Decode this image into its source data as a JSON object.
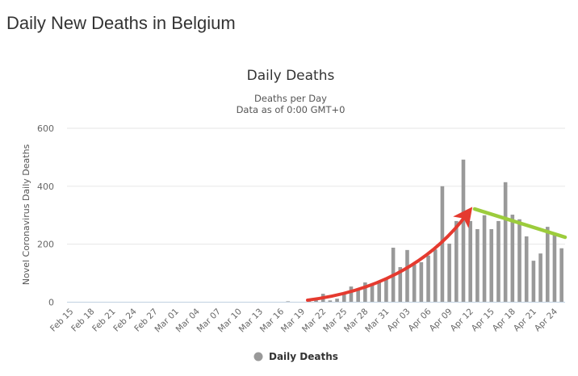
{
  "page": {
    "title": "Daily New Deaths in Belgium"
  },
  "chart_data": {
    "type": "bar",
    "title": "Daily Deaths",
    "subtitle": [
      "Deaths per Day",
      "Data as of 0:00 GMT+0"
    ],
    "ylabel": "Novel Coronavirus Daily Deaths",
    "xlabel": "",
    "ylim": [
      0,
      600
    ],
    "yticks": [
      0,
      200,
      400,
      600
    ],
    "grid": true,
    "legend": {
      "entries": [
        "Daily Deaths"
      ],
      "placement": "bottom-center"
    },
    "x_tick_labels": [
      "Feb 15",
      "Feb 18",
      "Feb 21",
      "Feb 24",
      "Feb 27",
      "Mar 01",
      "Mar 04",
      "Mar 07",
      "Mar 10",
      "Mar 13",
      "Mar 16",
      "Mar 19",
      "Mar 22",
      "Mar 25",
      "Mar 28",
      "Mar 31",
      "Apr 03",
      "Apr 06",
      "Apr 09",
      "Apr 12",
      "Apr 15",
      "Apr 18",
      "Apr 21",
      "Apr 24"
    ],
    "start_date": "Feb 15",
    "series": [
      {
        "name": "Daily Deaths",
        "color": "#999999",
        "values": [
          0,
          0,
          0,
          0,
          0,
          0,
          0,
          0,
          0,
          0,
          0,
          0,
          0,
          0,
          0,
          0,
          0,
          0,
          0,
          0,
          0,
          0,
          0,
          0,
          0,
          0,
          0,
          0,
          0,
          0,
          0,
          3,
          0,
          0,
          4,
          7,
          29,
          6,
          12,
          29,
          54,
          43,
          68,
          61,
          70,
          80,
          188,
          121,
          180,
          130,
          138,
          161,
          182,
          400,
          202,
          280,
          492,
          280,
          252,
          300,
          252,
          280,
          414,
          302,
          286,
          227,
          143,
          168,
          260,
          235,
          186
        ]
      }
    ],
    "annotations": [
      {
        "type": "arrow",
        "meaning": "rising trend",
        "color": "#e53a2f"
      },
      {
        "type": "line",
        "meaning": "declining trend",
        "color": "#9ccc3c"
      }
    ]
  }
}
